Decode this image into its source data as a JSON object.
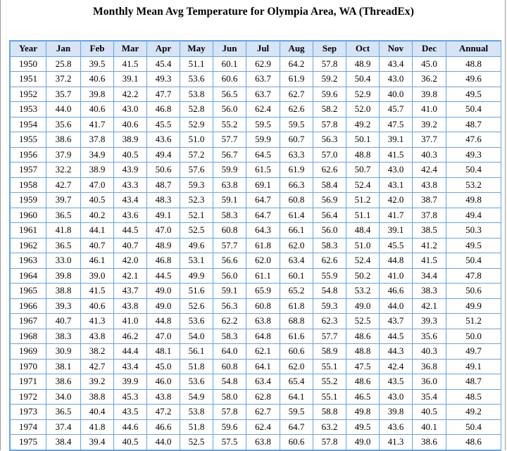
{
  "title": "Monthly Mean Avg Temperature for Olympia Area, WA (ThreadEx)",
  "header_bg": "#d6e4f7",
  "border_color": "#6aa3d8",
  "columns": [
    "Year",
    "Jan",
    "Feb",
    "Mar",
    "Apr",
    "May",
    "Jun",
    "Jul",
    "Aug",
    "Sep",
    "Oct",
    "Nov",
    "Dec",
    "Annual"
  ],
  "rows": [
    [
      "1950",
      "25.8",
      "39.5",
      "41.5",
      "45.4",
      "51.1",
      "60.1",
      "62.9",
      "64.2",
      "57.8",
      "48.9",
      "43.4",
      "45.0",
      "48.8"
    ],
    [
      "1951",
      "37.2",
      "40.6",
      "39.1",
      "49.3",
      "53.6",
      "60.6",
      "63.7",
      "61.9",
      "59.2",
      "50.4",
      "43.0",
      "36.2",
      "49.6"
    ],
    [
      "1952",
      "35.7",
      "39.8",
      "42.2",
      "47.7",
      "53.8",
      "56.5",
      "63.7",
      "62.7",
      "59.6",
      "52.9",
      "40.0",
      "39.8",
      "49.5"
    ],
    [
      "1953",
      "44.0",
      "40.6",
      "43.0",
      "46.8",
      "52.8",
      "56.0",
      "62.4",
      "62.6",
      "58.2",
      "52.0",
      "45.7",
      "41.0",
      "50.4"
    ],
    [
      "1954",
      "35.6",
      "41.7",
      "40.6",
      "45.5",
      "52.9",
      "55.2",
      "59.5",
      "59.5",
      "57.8",
      "49.2",
      "47.5",
      "39.2",
      "48.7"
    ],
    [
      "1955",
      "38.6",
      "37.8",
      "38.9",
      "43.6",
      "51.0",
      "57.7",
      "59.9",
      "60.7",
      "56.3",
      "50.1",
      "39.1",
      "37.7",
      "47.6"
    ],
    [
      "1956",
      "37.9",
      "34.9",
      "40.5",
      "49.4",
      "57.2",
      "56.7",
      "64.5",
      "63.3",
      "57.0",
      "48.8",
      "41.5",
      "40.3",
      "49.3"
    ],
    [
      "1957",
      "32.2",
      "38.9",
      "43.9",
      "50.6",
      "57.6",
      "59.9",
      "61.5",
      "61.9",
      "62.6",
      "50.7",
      "43.0",
      "42.4",
      "50.4"
    ],
    [
      "1958",
      "42.7",
      "47.0",
      "43.3",
      "48.7",
      "59.3",
      "63.8",
      "69.1",
      "66.3",
      "58.4",
      "52.4",
      "43.1",
      "43.8",
      "53.2"
    ],
    [
      "1959",
      "39.7",
      "40.5",
      "43.4",
      "48.3",
      "52.3",
      "59.1",
      "64.7",
      "60.8",
      "56.9",
      "51.2",
      "42.0",
      "38.7",
      "49.8"
    ],
    [
      "1960",
      "36.5",
      "40.2",
      "43.6",
      "49.1",
      "52.1",
      "58.3",
      "64.7",
      "61.4",
      "56.4",
      "51.1",
      "41.7",
      "37.8",
      "49.4"
    ],
    [
      "1961",
      "41.8",
      "44.1",
      "44.5",
      "47.0",
      "52.5",
      "60.8",
      "64.3",
      "66.1",
      "56.0",
      "48.4",
      "39.1",
      "38.5",
      "50.3"
    ],
    [
      "1962",
      "36.5",
      "40.7",
      "40.7",
      "48.9",
      "49.6",
      "57.7",
      "61.8",
      "62.0",
      "58.3",
      "51.0",
      "45.5",
      "41.2",
      "49.5"
    ],
    [
      "1963",
      "33.0",
      "46.1",
      "42.0",
      "46.8",
      "53.1",
      "56.6",
      "62.0",
      "63.4",
      "62.6",
      "52.4",
      "44.8",
      "41.5",
      "50.4"
    ],
    [
      "1964",
      "39.8",
      "39.0",
      "42.1",
      "44.5",
      "49.9",
      "56.0",
      "61.1",
      "60.1",
      "55.9",
      "50.2",
      "41.0",
      "34.4",
      "47.8"
    ],
    [
      "1965",
      "38.8",
      "41.5",
      "43.7",
      "49.0",
      "51.6",
      "59.1",
      "65.9",
      "65.2",
      "54.8",
      "53.2",
      "46.6",
      "38.3",
      "50.6"
    ],
    [
      "1966",
      "39.3",
      "40.6",
      "43.8",
      "49.0",
      "52.6",
      "56.3",
      "60.8",
      "61.8",
      "59.3",
      "49.0",
      "44.0",
      "42.1",
      "49.9"
    ],
    [
      "1967",
      "40.7",
      "41.3",
      "41.0",
      "44.8",
      "53.6",
      "62.2",
      "63.8",
      "68.8",
      "62.3",
      "52.5",
      "43.7",
      "39.3",
      "51.2"
    ],
    [
      "1968",
      "38.3",
      "43.8",
      "46.2",
      "47.0",
      "54.0",
      "58.3",
      "64.8",
      "61.6",
      "57.7",
      "48.6",
      "44.5",
      "35.6",
      "50.0"
    ],
    [
      "1969",
      "30.9",
      "38.2",
      "44.4",
      "48.1",
      "56.1",
      "64.0",
      "62.1",
      "60.6",
      "58.9",
      "48.8",
      "44.3",
      "40.3",
      "49.7"
    ],
    [
      "1970",
      "38.1",
      "42.7",
      "43.4",
      "45.0",
      "51.8",
      "60.8",
      "64.1",
      "62.0",
      "55.1",
      "47.5",
      "42.4",
      "36.8",
      "49.1"
    ],
    [
      "1971",
      "38.6",
      "39.2",
      "39.9",
      "46.0",
      "53.6",
      "54.8",
      "63.4",
      "65.4",
      "55.2",
      "48.6",
      "43.5",
      "36.0",
      "48.7"
    ],
    [
      "1972",
      "34.0",
      "38.8",
      "45.3",
      "43.8",
      "54.9",
      "58.0",
      "62.8",
      "64.1",
      "55.1",
      "46.5",
      "43.0",
      "35.4",
      "48.5"
    ],
    [
      "1973",
      "36.5",
      "40.4",
      "43.5",
      "47.2",
      "53.8",
      "57.8",
      "62.7",
      "59.5",
      "58.8",
      "49.8",
      "39.8",
      "40.5",
      "49.2"
    ],
    [
      "1974",
      "37.4",
      "41.8",
      "44.6",
      "46.6",
      "51.8",
      "59.6",
      "62.4",
      "64.7",
      "63.2",
      "49.5",
      "43.6",
      "40.1",
      "50.4"
    ],
    [
      "1975",
      "38.4",
      "39.4",
      "40.5",
      "44.0",
      "52.5",
      "57.5",
      "63.8",
      "60.6",
      "57.8",
      "49.0",
      "41.3",
      "38.6",
      "48.6"
    ]
  ]
}
